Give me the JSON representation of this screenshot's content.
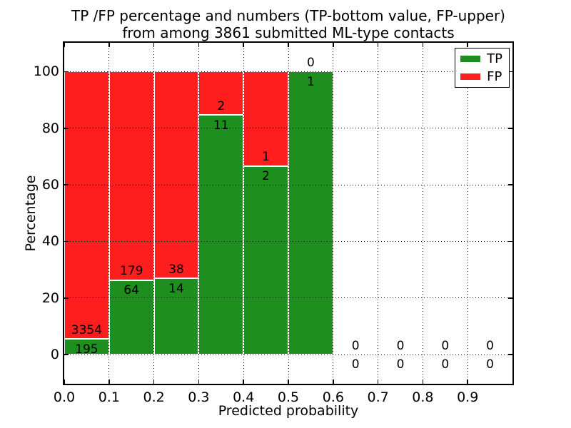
{
  "chart_data": {
    "type": "bar",
    "stacked": true,
    "title_line1": "TP /FP percentage and numbers (TP-bottom value, FP-upper)",
    "title_line2": "from among 3861 submitted ML-type contacts",
    "xlabel": "Predicted probability",
    "ylabel": "Percentage",
    "total_contacts": 3861,
    "xlim": [
      0.0,
      1.0
    ],
    "ylim": [
      -10.3,
      110.2
    ],
    "x_ticks": [
      0.0,
      0.1,
      0.2,
      0.3,
      0.4,
      0.5,
      0.6,
      0.7,
      0.8,
      0.9
    ],
    "x_tick_labels": [
      "0.0",
      "0.1",
      "0.2",
      "0.3",
      "0.4",
      "0.5",
      "0.6",
      "0.7",
      "0.8",
      "0.9"
    ],
    "y_ticks": [
      0,
      20,
      40,
      60,
      80,
      100
    ],
    "y_tick_labels": [
      "0",
      "20",
      "40",
      "60",
      "80",
      "100"
    ],
    "grid": "dotted",
    "grid_above_bars": true,
    "legend_position": "upper right",
    "legend": [
      {
        "label": "TP",
        "color": "#1E8E1E"
      },
      {
        "label": "FP",
        "color": "#FF1E1E"
      }
    ],
    "bar_edge_color": "#ffffff",
    "bins": [
      {
        "x_start": 0.0,
        "x_end": 0.1,
        "tp": 195,
        "fp": 3354
      },
      {
        "x_start": 0.1,
        "x_end": 0.2,
        "tp": 64,
        "fp": 179
      },
      {
        "x_start": 0.2,
        "x_end": 0.3,
        "tp": 14,
        "fp": 38
      },
      {
        "x_start": 0.3,
        "x_end": 0.4,
        "tp": 11,
        "fp": 2
      },
      {
        "x_start": 0.4,
        "x_end": 0.5,
        "tp": 2,
        "fp": 1
      },
      {
        "x_start": 0.5,
        "x_end": 0.6,
        "tp": 1,
        "fp": 0
      },
      {
        "x_start": 0.6,
        "x_end": 0.7,
        "tp": 0,
        "fp": 0
      },
      {
        "x_start": 0.7,
        "x_end": 0.8,
        "tp": 0,
        "fp": 0
      },
      {
        "x_start": 0.8,
        "x_end": 0.9,
        "tp": 0,
        "fp": 0
      },
      {
        "x_start": 0.9,
        "x_end": 1.0,
        "tp": 0,
        "fp": 0
      }
    ]
  }
}
